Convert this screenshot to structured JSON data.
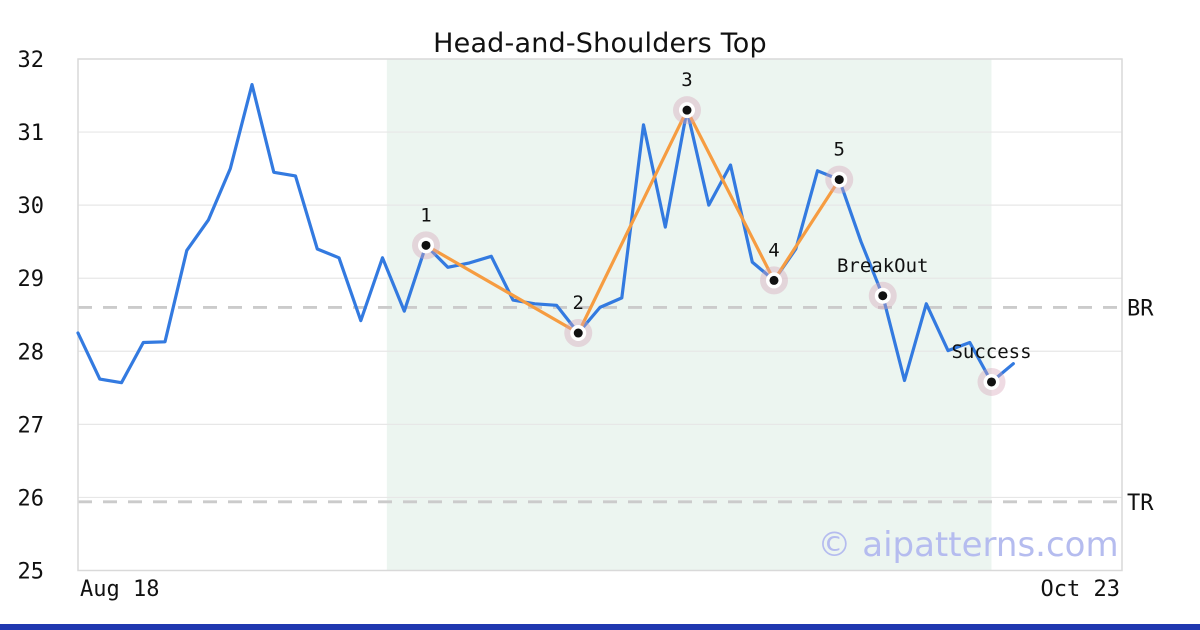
{
  "title": "Head-and-Shoulders Top",
  "watermark": "© aipatterns.com",
  "colors": {
    "price_line": "#337ae0",
    "pattern_line": "#f69c41",
    "pattern_zone_fill": "#ecf5f0",
    "marker_dot": "#111111",
    "marker_ring": "#ffffff",
    "marker_halo": "rgba(214,166,184,0.40)",
    "level_line": "#cbcbcb",
    "grid_line": "#e7e7e7",
    "frame": "#d9d9d9",
    "text": "#111111",
    "watermark_color": "#b5bcef",
    "bottom_bar": "#2038b0"
  },
  "chart_data": {
    "type": "line",
    "title": "Head-and-Shoulders Top",
    "x_axis": {
      "start_label": "Aug 18",
      "end_label": "Oct 23"
    },
    "y_axis": {
      "min": 25,
      "max": 32,
      "ticks": [
        32,
        31,
        30,
        29,
        28,
        27,
        26,
        25
      ]
    },
    "grid": true,
    "legend": "none",
    "series": [
      {
        "name": "price",
        "values": [
          28.25,
          27.62,
          27.57,
          28.12,
          28.13,
          29.38,
          29.8,
          30.5,
          31.65,
          30.45,
          30.4,
          29.4,
          29.28,
          28.42,
          29.28,
          28.55,
          29.45,
          29.15,
          29.21,
          29.3,
          28.7,
          28.65,
          28.63,
          28.25,
          28.6,
          28.73,
          31.1,
          29.7,
          31.3,
          30.0,
          30.55,
          29.22,
          28.97,
          29.4,
          30.47,
          30.35,
          29.5,
          28.76,
          27.6,
          28.65,
          28.01,
          28.12,
          27.58,
          27.83
        ]
      }
    ],
    "pattern_points": [
      {
        "label": "1",
        "index": 16,
        "value": 29.45
      },
      {
        "label": "2",
        "index": 23,
        "value": 28.25
      },
      {
        "label": "3",
        "index": 28,
        "value": 31.3
      },
      {
        "label": "4",
        "index": 32,
        "value": 28.97
      },
      {
        "label": "5",
        "index": 35,
        "value": 30.35
      }
    ],
    "event_points": [
      {
        "label": "BreakOut",
        "index": 37,
        "value": 28.76
      },
      {
        "label": "Success",
        "index": 42,
        "value": 27.58
      }
    ],
    "levels": [
      {
        "label": "BR",
        "value": 28.6
      },
      {
        "label": "TR",
        "value": 25.94
      }
    ],
    "pattern_zone": {
      "start_index": 14.2,
      "end_index": 42
    }
  }
}
